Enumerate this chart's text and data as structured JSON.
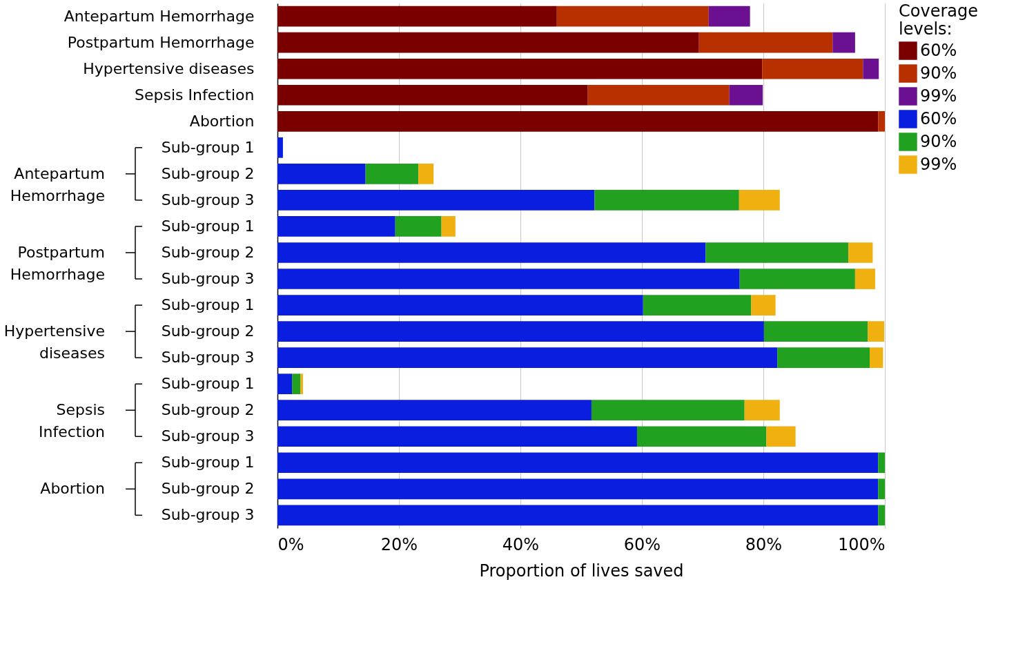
{
  "chart_data": {
    "type": "bar",
    "orientation": "horizontal",
    "stacked": true,
    "xlabel": "Proportion of lives saved",
    "legend_title": "Coverage levels:",
    "legend": "top right",
    "grid": "x",
    "categories": [
      "Antepartum Hemorrhage",
      "Postpartum Hemorrhage",
      "Hypertensive diseases",
      "Sepsis Infection",
      "Abortion",
      "Sub-group 1",
      "Sub-group 2",
      "Sub-group 3",
      "Sub-group 1",
      "Sub-group 2",
      "Sub-group 3",
      "Sub-group 1",
      "Sub-group 2",
      "Sub-group 3",
      "Sub-group 1",
      "Sub-group 2",
      "Sub-group 3",
      "Sub-group 1",
      "Sub-group 2",
      "Sub-group 3"
    ],
    "annotations": [
      "Antepartum Hemorrhage",
      "Postpartum Hemorrhage",
      "Hypertensive diseases",
      "Sepsis Infection",
      "Abortion"
    ],
    "xlim": [
      0,
      100
    ],
    "xticks": [
      {
        "value": 0,
        "label": "0%"
      },
      {
        "value": 20,
        "label": "20%"
      },
      {
        "value": 40,
        "label": "40%"
      },
      {
        "value": 60,
        "label": "60%"
      },
      {
        "value": 80,
        "label": "80%"
      },
      {
        "value": 100,
        "label": "100%"
      }
    ],
    "series": [
      {
        "name": "60%",
        "color": "#7a0000",
        "values": [
          46.0,
          69.4,
          79.8,
          51.1,
          98.9,
          null,
          null,
          null,
          null,
          null,
          null,
          null,
          null,
          null,
          null,
          null,
          null,
          null,
          null,
          null
        ]
      },
      {
        "name": "90%",
        "color": "#b83000",
        "values": [
          25.0,
          22.0,
          16.6,
          23.3,
          1.1,
          null,
          null,
          null,
          null,
          null,
          null,
          null,
          null,
          null,
          null,
          null,
          null,
          null,
          null,
          null
        ]
      },
      {
        "name": "99%",
        "color": "#6a1090",
        "values": [
          6.8,
          3.7,
          2.6,
          5.5,
          null,
          null,
          null,
          null,
          null,
          null,
          null,
          null,
          null,
          null,
          null,
          null,
          null,
          null,
          null,
          null
        ]
      },
      {
        "name": "60%",
        "color": "#0a1ee0",
        "values": [
          null,
          null,
          null,
          null,
          null,
          0.9,
          14.5,
          52.2,
          19.4,
          70.5,
          76.1,
          60.2,
          80.1,
          82.3,
          2.4,
          51.7,
          59.2,
          98.9,
          98.9,
          98.9
        ]
      },
      {
        "name": "90%",
        "color": "#22a020",
        "values": [
          null,
          null,
          null,
          null,
          null,
          null,
          8.7,
          23.8,
          7.6,
          23.5,
          19.0,
          17.8,
          17.1,
          15.2,
          1.4,
          25.2,
          21.3,
          1.1,
          1.1,
          1.1
        ]
      },
      {
        "name": "99%",
        "color": "#f0b010",
        "values": [
          null,
          null,
          null,
          null,
          null,
          null,
          2.5,
          6.7,
          2.3,
          4.0,
          3.3,
          4.0,
          2.7,
          2.2,
          0.4,
          5.8,
          4.8,
          null,
          null,
          null
        ]
      }
    ]
  }
}
